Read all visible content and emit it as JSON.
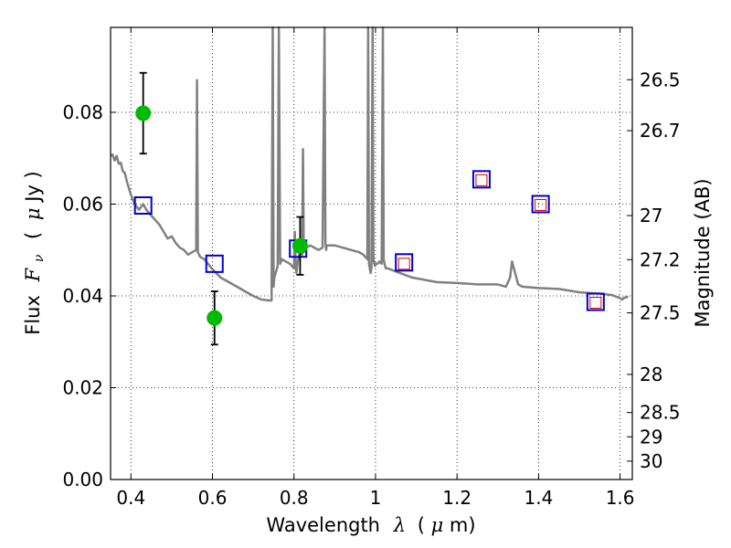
{
  "chart_data": {
    "type": "scatter",
    "xlabel": {
      "prefix": "Wavelength",
      "symbol": "λ",
      "unit_open": "(",
      "unit_mu": "μ",
      "unit_rest": "m)"
    },
    "ylabel": {
      "prefix": "Flux",
      "symbol": "F",
      "subscript": "ν",
      "unit_open": "(",
      "unit_mu": "μ",
      "unit_rest": "Jy )"
    },
    "y2label": "Magnitude (AB)",
    "xlim": [
      0.35,
      1.63
    ],
    "ylim": [
      0.0,
      0.0985
    ],
    "grid": true,
    "x_ticks": [
      0.4,
      0.6,
      0.8,
      1.0,
      1.2,
      1.4,
      1.6
    ],
    "x_tick_labels": [
      "0.4",
      "0.6",
      "0.8",
      "1",
      "1.2",
      "1.4",
      "1.6"
    ],
    "y_ticks": [
      0.0,
      0.02,
      0.04,
      0.06,
      0.08
    ],
    "y_tick_labels": [
      "0.00",
      "0.02",
      "0.04",
      "0.06",
      "0.08"
    ],
    "y2_ticks": [
      {
        "label": "26.5",
        "flux": 0.0871
      },
      {
        "label": "26.7",
        "flux": 0.076
      },
      {
        "label": "27",
        "flux": 0.0575
      },
      {
        "label": "27.2",
        "flux": 0.0479
      },
      {
        "label": "27.5",
        "flux": 0.0363
      },
      {
        "label": "28",
        "flux": 0.0229
      },
      {
        "label": "28.5",
        "flux": 0.0146
      },
      {
        "label": "29",
        "flux": 0.0093
      },
      {
        "label": "30",
        "flux": 0.004
      }
    ],
    "series": [
      {
        "kind": "line",
        "color": "#808080",
        "x": [
          0.35,
          0.355,
          0.36,
          0.365,
          0.37,
          0.375,
          0.38,
          0.385,
          0.39,
          0.4,
          0.41,
          0.42,
          0.43,
          0.44,
          0.45,
          0.46,
          0.47,
          0.48,
          0.49,
          0.5,
          0.51,
          0.52,
          0.53,
          0.54,
          0.55,
          0.56,
          0.562,
          0.564,
          0.566,
          0.57,
          0.58,
          0.6,
          0.62,
          0.64,
          0.66,
          0.68,
          0.7,
          0.72,
          0.74,
          0.745,
          0.748,
          0.75,
          0.752,
          0.755,
          0.76,
          0.763,
          0.766,
          0.77,
          0.78,
          0.79,
          0.8,
          0.802,
          0.804,
          0.806,
          0.81,
          0.815,
          0.82,
          0.822,
          0.824,
          0.826,
          0.83,
          0.84,
          0.85,
          0.86,
          0.87,
          0.875,
          0.877,
          0.879,
          0.88,
          0.9,
          0.92,
          0.94,
          0.96,
          0.97,
          0.98,
          0.982,
          0.984,
          0.986,
          0.988,
          0.99,
          0.993,
          0.995,
          0.997,
          0.999,
          1.0,
          1.005,
          1.01,
          1.015,
          1.018,
          1.02,
          1.022,
          1.025,
          1.03,
          1.06,
          1.09,
          1.12,
          1.15,
          1.2,
          1.25,
          1.3,
          1.32,
          1.33,
          1.335,
          1.35,
          1.36,
          1.4,
          1.45,
          1.5,
          1.55,
          1.58,
          1.6,
          1.605,
          1.61,
          1.62
        ],
        "y": [
          0.0705,
          0.0708,
          0.0695,
          0.0705,
          0.0688,
          0.069,
          0.0672,
          0.0668,
          0.065,
          0.062,
          0.0598,
          0.0588,
          0.06,
          0.0585,
          0.0575,
          0.0565,
          0.0555,
          0.054,
          0.0525,
          0.053,
          0.0515,
          0.0505,
          0.05,
          0.049,
          0.0495,
          0.05,
          0.087,
          0.0495,
          0.0492,
          0.0485,
          0.048,
          0.0458,
          0.044,
          0.043,
          0.042,
          0.041,
          0.04,
          0.0392,
          0.039,
          0.039,
          0.0986,
          0.042,
          0.044,
          0.045,
          0.0465,
          0.0986,
          0.047,
          0.048,
          0.0475,
          0.047,
          0.046,
          0.054,
          0.047,
          0.045,
          0.048,
          0.0495,
          0.049,
          0.072,
          0.0495,
          0.051,
          0.0505,
          0.051,
          0.0505,
          0.05,
          0.0505,
          0.0986,
          0.0515,
          0.05,
          0.051,
          0.051,
          0.0505,
          0.05,
          0.0495,
          0.049,
          0.048,
          0.0986,
          0.047,
          0.046,
          0.045,
          0.046,
          0.0986,
          0.048,
          0.047,
          0.0465,
          0.047,
          0.047,
          0.0475,
          0.047,
          0.0986,
          0.048,
          0.047,
          0.046,
          0.046,
          0.045,
          0.044,
          0.0435,
          0.043,
          0.0428,
          0.0425,
          0.0425,
          0.042,
          0.044,
          0.0475,
          0.0425,
          0.042,
          0.0417,
          0.0415,
          0.0408,
          0.0405,
          0.0402,
          0.0395,
          0.0392,
          0.0396,
          0.0398
        ]
      },
      {
        "kind": "open-square",
        "color": "#0000cc",
        "x": [
          0.43,
          0.605,
          0.81,
          1.07,
          1.26,
          1.405,
          1.54
        ],
        "y": [
          0.0597,
          0.047,
          0.0503,
          0.0473,
          0.0654,
          0.06,
          0.0387
        ]
      },
      {
        "kind": "open-square-small",
        "color": "#dd0000",
        "x": [
          1.07,
          1.26,
          1.405,
          1.54
        ],
        "y": [
          0.047,
          0.0652,
          0.0598,
          0.0385
        ]
      },
      {
        "kind": "point-errorbar",
        "color": "#00bb00",
        "x": [
          0.43,
          0.605,
          0.815
        ],
        "y": [
          0.0798,
          0.0352,
          0.0509
        ],
        "yerr": [
          0.0088,
          0.0058,
          0.0063
        ]
      }
    ]
  }
}
